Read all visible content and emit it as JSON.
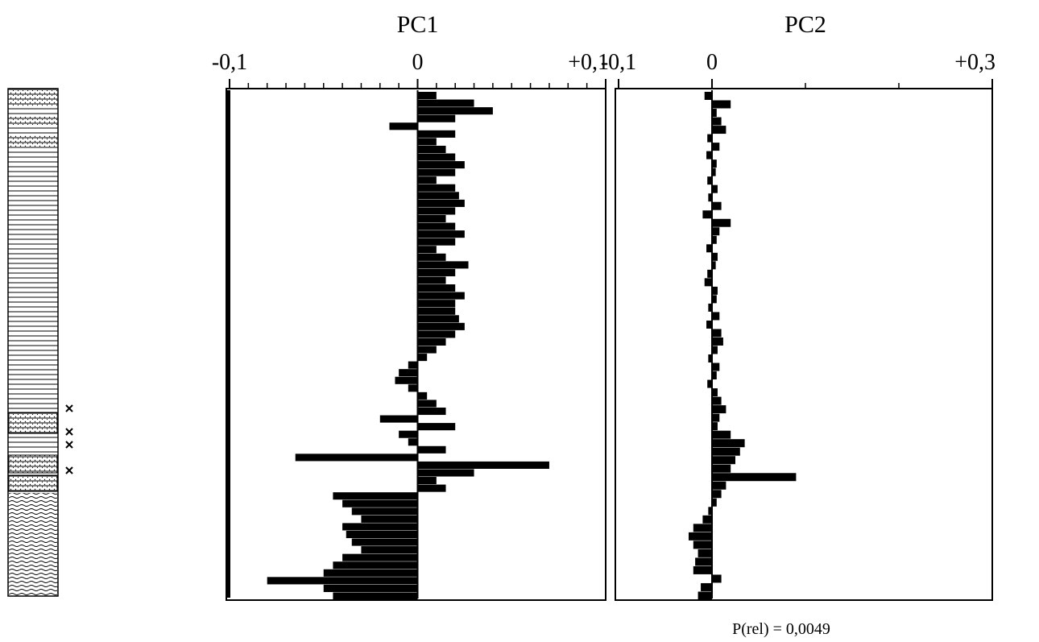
{
  "chart_data": [
    {
      "type": "bar",
      "orientation": "horizontal",
      "title": "PC1",
      "color": "#000000",
      "xlim": [
        -0.1,
        0.1
      ],
      "xticks": [
        {
          "value": -0.1,
          "label": "-0,1"
        },
        0,
        {
          "value": 0.1,
          "label": "+0,1"
        }
      ],
      "minor_xticks": [
        -0.09,
        -0.08,
        -0.07,
        -0.06,
        -0.05,
        -0.04,
        -0.03,
        -0.02,
        -0.01,
        0.01,
        0.02,
        0.03,
        0.04,
        0.05,
        0.06,
        0.07,
        0.08,
        0.09
      ],
      "values": [
        0.01,
        0.03,
        0.04,
        0.02,
        -0.015,
        0.02,
        0.01,
        0.015,
        0.02,
        0.025,
        0.02,
        0.01,
        0.02,
        0.022,
        0.025,
        0.02,
        0.015,
        0.02,
        0.025,
        0.02,
        0.01,
        0.015,
        0.027,
        0.02,
        0.015,
        0.02,
        0.025,
        0.02,
        0.02,
        0.022,
        0.025,
        0.02,
        0.015,
        0.01,
        0.005,
        -0.005,
        -0.01,
        -0.012,
        -0.005,
        0.005,
        0.01,
        0.015,
        -0.02,
        0.02,
        -0.01,
        -0.005,
        0.015,
        -0.065,
        0.07,
        0.03,
        0.01,
        0.015,
        -0.045,
        -0.04,
        -0.035,
        -0.03,
        -0.04,
        -0.038,
        -0.035,
        -0.03,
        -0.04,
        -0.045,
        -0.05,
        -0.08,
        -0.05,
        -0.045
      ]
    },
    {
      "type": "bar",
      "orientation": "horizontal",
      "title": "PC2",
      "color": "#000000",
      "xlim": [
        -0.1,
        0.3
      ],
      "xticks": [
        {
          "value": -0.1,
          "label": "-0,1"
        },
        0,
        {
          "value": 0.3,
          "label": "+0,3"
        }
      ],
      "minor_xticks": [
        0.1,
        0.2
      ],
      "annotation": "P(rel) = 0,0049",
      "values": [
        -0.008,
        0.02,
        0.005,
        0.01,
        0.015,
        -0.005,
        0.008,
        -0.006,
        0.005,
        0.004,
        -0.005,
        0.006,
        -0.004,
        0.01,
        -0.01,
        0.02,
        0.008,
        0.005,
        -0.006,
        0.006,
        0.004,
        -0.005,
        -0.008,
        0.006,
        0.005,
        -0.004,
        0.008,
        -0.006,
        0.01,
        0.012,
        0.006,
        -0.004,
        0.008,
        0.005,
        -0.005,
        0.006,
        0.01,
        0.015,
        0.008,
        0.006,
        0.02,
        0.035,
        0.03,
        0.025,
        0.02,
        0.09,
        0.015,
        0.01,
        0.005,
        -0.004,
        -0.01,
        -0.02,
        -0.025,
        -0.02,
        -0.015,
        -0.018,
        -0.02,
        0.01,
        -0.012,
        -0.015
      ]
    }
  ]
}
